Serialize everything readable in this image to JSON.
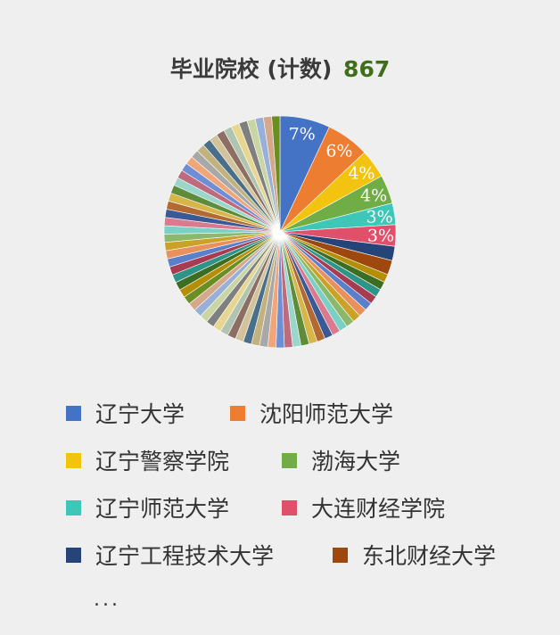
{
  "header": {
    "title": "毕业院校 (计数)",
    "count": "867"
  },
  "chart_data": {
    "type": "pie",
    "title": "毕业院校 (计数)",
    "total": 867,
    "slices": [
      {
        "name": "辽宁大学",
        "pct": 7,
        "label": "7%",
        "color": "#4472c4"
      },
      {
        "name": "沈阳师范大学",
        "pct": 6,
        "label": "6%",
        "color": "#ed7d31"
      },
      {
        "name": "辽宁警察学院",
        "pct": 4,
        "label": "4%",
        "color": "#f2c40f"
      },
      {
        "name": "渤海大学",
        "pct": 4,
        "label": "4%",
        "color": "#70ad47"
      },
      {
        "name": "辽宁师范大学",
        "pct": 3,
        "label": "3%",
        "color": "#3ec6b6"
      },
      {
        "name": "大连财经学院",
        "pct": 3,
        "label": "3%",
        "color": "#e0506a"
      },
      {
        "name": "辽宁工程技术大学",
        "pct": 2,
        "label": "",
        "color": "#264478"
      },
      {
        "name": "东北财经大学",
        "pct": 2,
        "label": "",
        "color": "#9e480e"
      }
    ],
    "other_slice_colors": [
      "#b48e04",
      "#3c6d22",
      "#2e9488",
      "#a63b52",
      "#5b7fc9",
      "#e8915c",
      "#c9a227",
      "#8bb86a",
      "#7ad0c4",
      "#d97a8e",
      "#3a5a95",
      "#b26a32",
      "#d6b64a",
      "#5e8c3a",
      "#9ad6cc",
      "#bf6b7e",
      "#6e8fd6",
      "#f0a678",
      "#a8a8a8",
      "#c2b280",
      "#4a6f8a",
      "#d3c39a",
      "#8d6e63",
      "#b0c4b1",
      "#e6d690",
      "#7f7f7f",
      "#c9d6a3",
      "#98b0d8",
      "#d6a88b",
      "#6b8e23"
    ],
    "other_slice_count": 60,
    "legend_position": "bottom",
    "legend_truncated": "..."
  }
}
